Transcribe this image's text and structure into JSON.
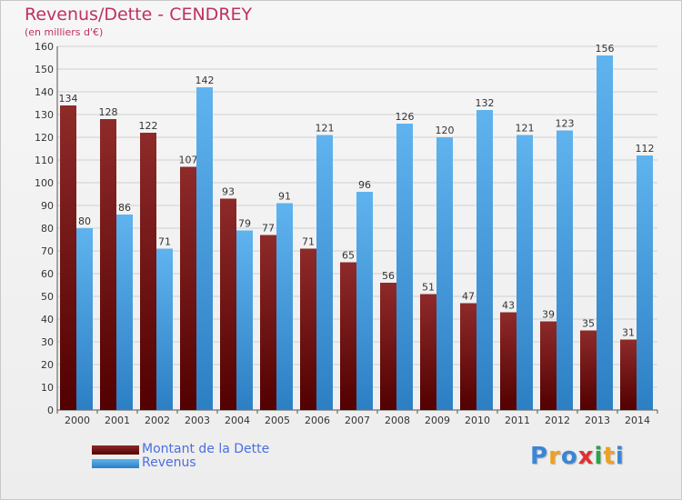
{
  "chart_data": {
    "type": "bar",
    "title": "Revenus/Dette - CENDREY",
    "subtitle": "(en milliers d'€)",
    "categories": [
      "2000",
      "2001",
      "2002",
      "2003",
      "2004",
      "2005",
      "2006",
      "2007",
      "2008",
      "2009",
      "2010",
      "2011",
      "2012",
      "2013",
      "2014"
    ],
    "series": [
      {
        "name": "Montant de la Dette",
        "values": [
          134,
          128,
          122,
          107,
          93,
          77,
          71,
          65,
          56,
          51,
          47,
          43,
          39,
          35,
          31
        ],
        "color": "#7a1a1a"
      },
      {
        "name": "Revenus",
        "values": [
          80,
          86,
          71,
          142,
          79,
          91,
          121,
          96,
          126,
          120,
          132,
          121,
          123,
          156,
          112
        ],
        "color": "#4ba3e3"
      }
    ],
    "ylim": [
      0,
      160
    ],
    "yticks": [
      0,
      10,
      20,
      30,
      40,
      50,
      60,
      70,
      80,
      90,
      100,
      110,
      120,
      130,
      140,
      150,
      160
    ],
    "grid": true,
    "legend_position": "bottom-left"
  },
  "logo": {
    "letters": [
      "P",
      "r",
      "o",
      "x",
      "i",
      "t",
      "i"
    ],
    "colors": [
      "#3a86d6",
      "#f0a020",
      "#3a86d6",
      "#e03030",
      "#2aa34a",
      "#f0a020",
      "#3a86d6"
    ]
  }
}
